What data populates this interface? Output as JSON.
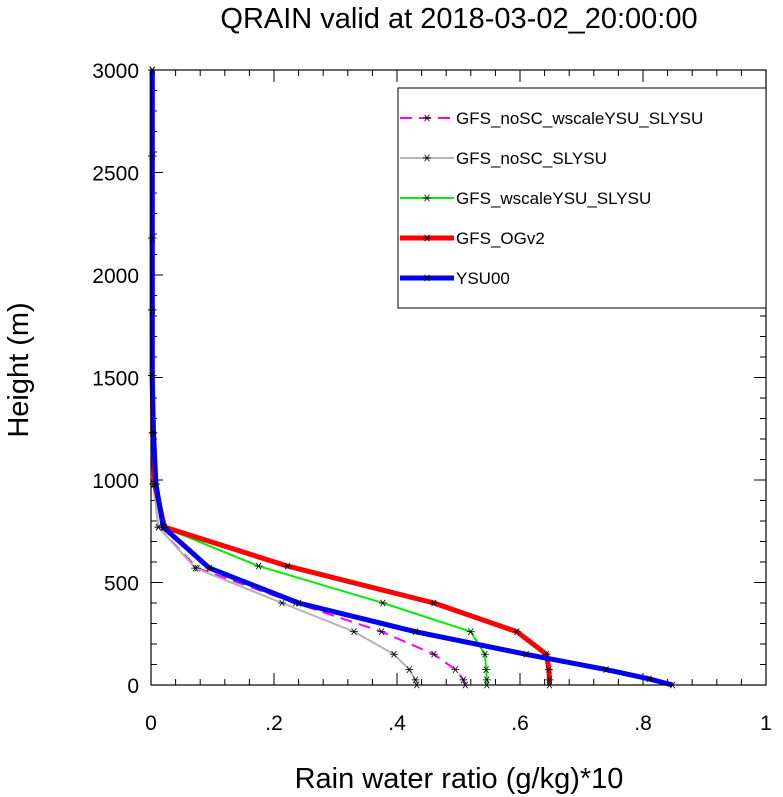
{
  "chart_data": {
    "type": "line",
    "title": "QRAIN valid at 2018-03-02_20:00:00",
    "xlabel": "Rain water ratio (g/kg)*10",
    "ylabel": "Height (m)",
    "xlim": [
      0,
      1
    ],
    "ylim": [
      0,
      3000
    ],
    "xticks": [
      0,
      0.2,
      0.4,
      0.6,
      0.8,
      1
    ],
    "xtick_labels": [
      "0",
      ".2",
      ".4",
      ".6",
      ".8",
      "1"
    ],
    "yticks": [
      0,
      500,
      1000,
      1500,
      2000,
      2500,
      3000
    ],
    "ytick_labels": [
      "0",
      "500",
      "1000",
      "1500",
      "2000",
      "2500",
      "3000"
    ],
    "grid": false,
    "legend_position": "top-right",
    "series": [
      {
        "name": "GFS_noSC_wscaleYSU_SLYSU",
        "color": "#ff00ff",
        "dash": true,
        "width": 2,
        "points": [
          [
            0.511,
            0
          ],
          [
            0.508,
            25
          ],
          [
            0.495,
            75
          ],
          [
            0.46,
            150
          ],
          [
            0.375,
            260
          ],
          [
            0.235,
            400
          ],
          [
            0.075,
            570
          ],
          [
            0.012,
            770
          ],
          [
            0.004,
            980
          ],
          [
            0.003,
            1230
          ],
          [
            0.002,
            1510
          ],
          [
            0.002,
            1830
          ],
          [
            0.002,
            2180
          ],
          [
            0.002,
            2580
          ],
          [
            0.002,
            3000
          ]
        ]
      },
      {
        "name": "GFS_noSC_SLYSU",
        "color": "#b4b4b4",
        "dash": false,
        "width": 2,
        "points": [
          [
            0.432,
            0
          ],
          [
            0.43,
            25
          ],
          [
            0.42,
            75
          ],
          [
            0.395,
            150
          ],
          [
            0.33,
            260
          ],
          [
            0.213,
            400
          ],
          [
            0.072,
            570
          ],
          [
            0.012,
            770
          ],
          [
            0.004,
            980
          ],
          [
            0.003,
            1230
          ],
          [
            0.002,
            1510
          ],
          [
            0.002,
            1830
          ],
          [
            0.002,
            2180
          ],
          [
            0.002,
            2580
          ],
          [
            0.002,
            3000
          ]
        ]
      },
      {
        "name": "GFS_wscaleYSU_SLYSU",
        "color": "#00ee00",
        "dash": false,
        "width": 2,
        "points": [
          [
            0.546,
            0
          ],
          [
            0.546,
            25
          ],
          [
            0.545,
            75
          ],
          [
            0.543,
            150
          ],
          [
            0.52,
            260
          ],
          [
            0.377,
            400
          ],
          [
            0.175,
            580
          ],
          [
            0.02,
            770
          ],
          [
            0.005,
            980
          ],
          [
            0.003,
            1230
          ],
          [
            0.002,
            1510
          ],
          [
            0.002,
            1830
          ],
          [
            0.002,
            2180
          ],
          [
            0.002,
            2580
          ],
          [
            0.002,
            3000
          ]
        ]
      },
      {
        "name": "GFS_OGv2",
        "color": "#ff0000",
        "dash": false,
        "width": 5,
        "points": [
          [
            0.648,
            0
          ],
          [
            0.648,
            25
          ],
          [
            0.647,
            75
          ],
          [
            0.643,
            150
          ],
          [
            0.595,
            260
          ],
          [
            0.46,
            400
          ],
          [
            0.222,
            580
          ],
          [
            0.022,
            770
          ],
          [
            0.006,
            980
          ],
          [
            0.003,
            1230
          ],
          [
            0.002,
            1510
          ],
          [
            0.002,
            1830
          ],
          [
            0.002,
            2180
          ],
          [
            0.002,
            2580
          ],
          [
            0.002,
            3000
          ]
        ]
      },
      {
        "name": "YSU00",
        "color": "#0000ee",
        "dash": false,
        "width": 5,
        "points": [
          [
            0.848,
            0
          ],
          [
            0.81,
            30
          ],
          [
            0.74,
            75
          ],
          [
            0.61,
            150
          ],
          [
            0.43,
            260
          ],
          [
            0.24,
            400
          ],
          [
            0.095,
            570
          ],
          [
            0.02,
            770
          ],
          [
            0.008,
            980
          ],
          [
            0.004,
            1230
          ],
          [
            0.002,
            1510
          ],
          [
            0.002,
            1830
          ],
          [
            0.002,
            2180
          ],
          [
            0.002,
            2580
          ],
          [
            0.002,
            3000
          ]
        ]
      }
    ]
  }
}
